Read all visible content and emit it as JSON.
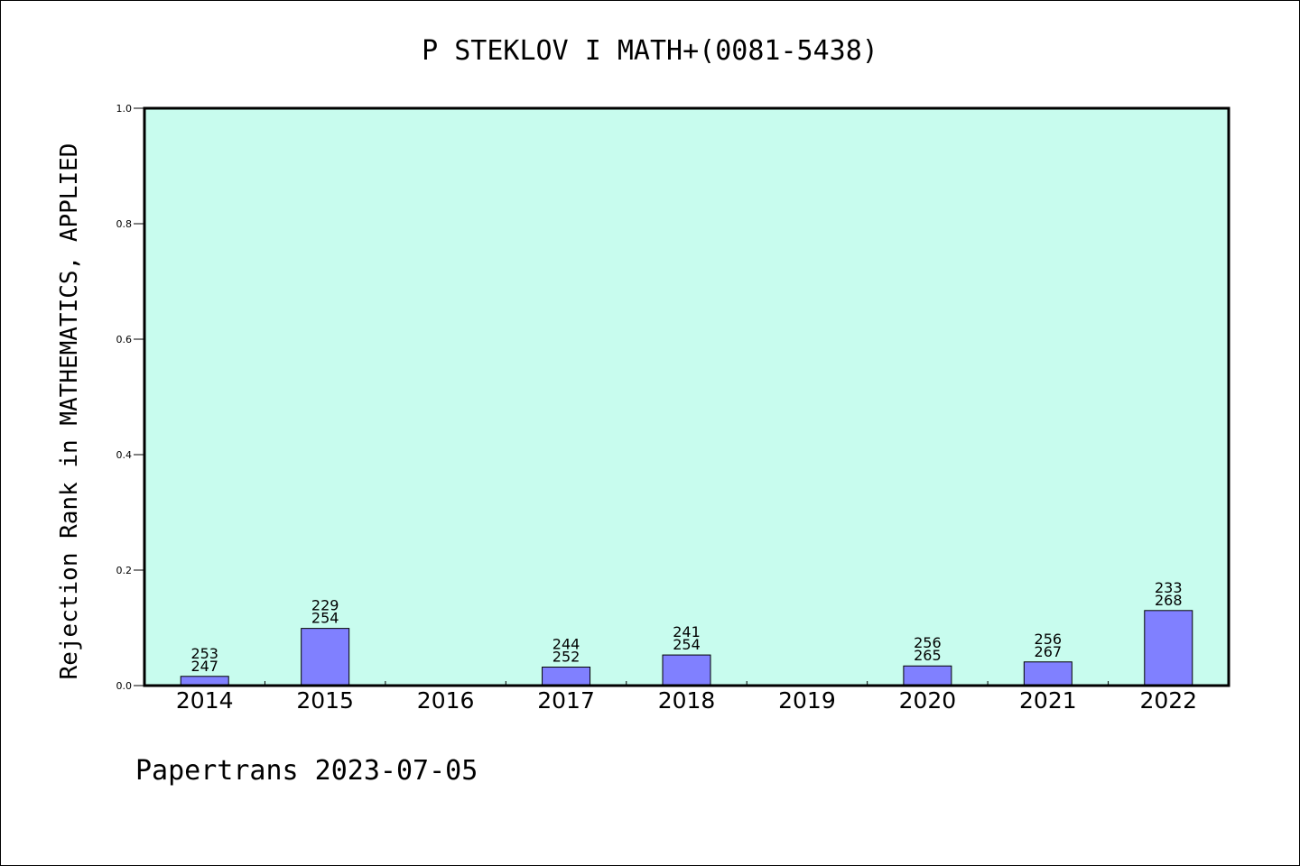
{
  "chart_data": {
    "type": "bar",
    "title": "P STEKLOV I MATH+(0081-5438)",
    "ylabel": "Rejection Rank in MATHEMATICS, APPLIED",
    "xlabel": "",
    "categories": [
      "2014",
      "2015",
      "2016",
      "2017",
      "2018",
      "2019",
      "2020",
      "2021",
      "2022"
    ],
    "values": [
      0.016,
      0.099,
      null,
      0.032,
      0.053,
      null,
      0.034,
      0.041,
      0.13
    ],
    "labels_top": [
      "253",
      "229",
      "",
      "244",
      "241",
      "",
      "256",
      "256",
      "233"
    ],
    "labels_bottom": [
      "247",
      "254",
      "",
      "252",
      "254",
      "",
      "265",
      "267",
      "268"
    ],
    "ylim": [
      0,
      1.0
    ],
    "yticks": [
      "0.0",
      "0.2",
      "0.4",
      "0.6",
      "0.8",
      "1.0"
    ],
    "grid": false,
    "colors": {
      "plot_background": "#c8fcee",
      "bar_fill": "#8080ff",
      "bar_stroke": "#000000"
    }
  },
  "footer": "Papertrans 2023-07-05"
}
